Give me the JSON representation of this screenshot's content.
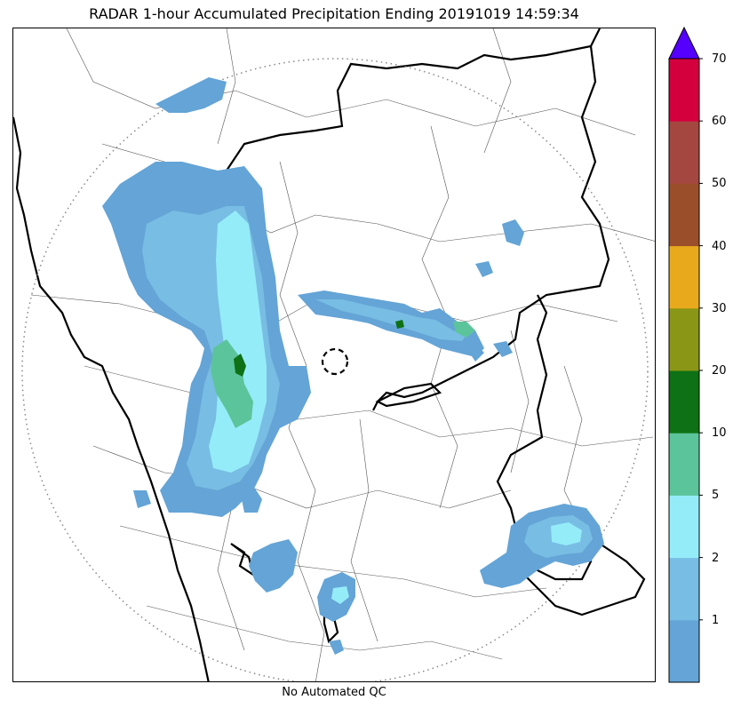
{
  "title": "RADAR 1-hour Accumulated Precipitation Ending 20191019 14:59:34",
  "footer": "No Automated QC",
  "colorbar": {
    "bands": [
      {
        "from": 0,
        "to": 1,
        "color": "#64a4d6"
      },
      {
        "from": 1,
        "to": 2,
        "color": "#78bde3"
      },
      {
        "from": 2,
        "to": 5,
        "color": "#95ecf9"
      },
      {
        "from": 5,
        "to": 10,
        "color": "#5cc49b"
      },
      {
        "from": 10,
        "to": 20,
        "color": "#0e7115"
      },
      {
        "from": 20,
        "to": 30,
        "color": "#8a9616"
      },
      {
        "from": 30,
        "to": 40,
        "color": "#e8aa1c"
      },
      {
        "from": 40,
        "to": 50,
        "color": "#9a4e2a"
      },
      {
        "from": 50,
        "to": 60,
        "color": "#a54741"
      },
      {
        "from": 60,
        "to": 70,
        "color": "#d4003e"
      }
    ],
    "overflow_color": "#5500ff",
    "tick_labels": [
      "1",
      "2",
      "5",
      "10",
      "20",
      "30",
      "40",
      "50",
      "60",
      "70"
    ]
  },
  "map": {
    "radar_range_ring": "dotted",
    "radar_site_marker": "dashed circle",
    "echo_colors": {
      "light": "#64a4d6",
      "moderate": "#78bde3",
      "heavy": "#95ecf9",
      "very_heavy": "#5cc49b",
      "intense": "#0e7115"
    }
  }
}
